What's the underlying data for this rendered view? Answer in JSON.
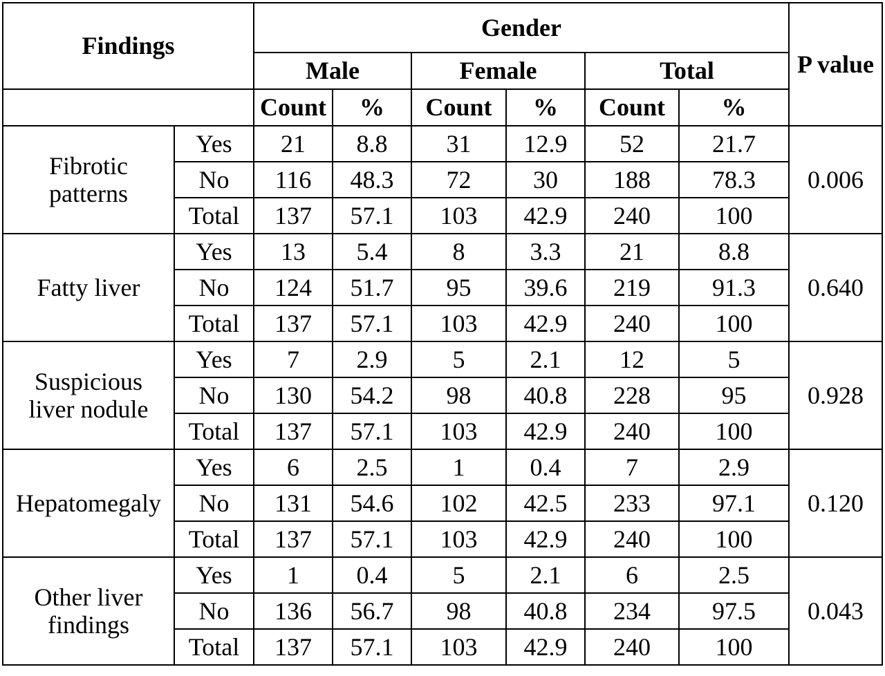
{
  "header": {
    "findings": "Findings",
    "gender": "Gender",
    "p_value": "P value",
    "groups": [
      "Male",
      "Female",
      "Total"
    ],
    "count": "Count",
    "percent": "%"
  },
  "rows": [
    {
      "label": [
        "Fibrotic",
        "patterns"
      ],
      "p": "0.006",
      "sub": [
        {
          "name": "Yes",
          "m_c": "21",
          "m_p": "8.8",
          "f_c": "31",
          "f_p": "12.9",
          "t_c": "52",
          "t_p": "21.7"
        },
        {
          "name": "No",
          "m_c": "116",
          "m_p": "48.3",
          "f_c": "72",
          "f_p": "30",
          "t_c": "188",
          "t_p": "78.3"
        },
        {
          "name": "Total",
          "m_c": "137",
          "m_p": "57.1",
          "f_c": "103",
          "f_p": "42.9",
          "t_c": "240",
          "t_p": "100"
        }
      ]
    },
    {
      "label": [
        "Fatty liver"
      ],
      "p": "0.640",
      "sub": [
        {
          "name": "Yes",
          "m_c": "13",
          "m_p": "5.4",
          "f_c": "8",
          "f_p": "3.3",
          "t_c": "21",
          "t_p": "8.8"
        },
        {
          "name": "No",
          "m_c": "124",
          "m_p": "51.7",
          "f_c": "95",
          "f_p": "39.6",
          "t_c": "219",
          "t_p": "91.3"
        },
        {
          "name": "Total",
          "m_c": "137",
          "m_p": "57.1",
          "f_c": "103",
          "f_p": "42.9",
          "t_c": "240",
          "t_p": "100"
        }
      ]
    },
    {
      "label": [
        "Suspicious",
        "liver nodule"
      ],
      "p": "0.928",
      "sub": [
        {
          "name": "Yes",
          "m_c": "7",
          "m_p": "2.9",
          "f_c": "5",
          "f_p": "2.1",
          "t_c": "12",
          "t_p": "5"
        },
        {
          "name": "No",
          "m_c": "130",
          "m_p": "54.2",
          "f_c": "98",
          "f_p": "40.8",
          "t_c": "228",
          "t_p": "95"
        },
        {
          "name": "Total",
          "m_c": "137",
          "m_p": "57.1",
          "f_c": "103",
          "f_p": "42.9",
          "t_c": "240",
          "t_p": "100"
        }
      ]
    },
    {
      "label": [
        "Hepatomegaly"
      ],
      "p": "0.120",
      "sub": [
        {
          "name": "Yes",
          "m_c": "6",
          "m_p": "2.5",
          "f_c": "1",
          "f_p": "0.4",
          "t_c": "7",
          "t_p": "2.9"
        },
        {
          "name": "No",
          "m_c": "131",
          "m_p": "54.6",
          "f_c": "102",
          "f_p": "42.5",
          "t_c": "233",
          "t_p": "97.1"
        },
        {
          "name": "Total",
          "m_c": "137",
          "m_p": "57.1",
          "f_c": "103",
          "f_p": "42.9",
          "t_c": "240",
          "t_p": "100"
        }
      ]
    },
    {
      "label": [
        "Other liver",
        "findings"
      ],
      "p": "0.043",
      "sub": [
        {
          "name": "Yes",
          "m_c": "1",
          "m_p": "0.4",
          "f_c": "5",
          "f_p": "2.1",
          "t_c": "6",
          "t_p": "2.5"
        },
        {
          "name": "No",
          "m_c": "136",
          "m_p": "56.7",
          "f_c": "98",
          "f_p": "40.8",
          "t_c": "234",
          "t_p": "97.5"
        },
        {
          "name": "Total",
          "m_c": "137",
          "m_p": "57.1",
          "f_c": "103",
          "f_p": "42.9",
          "t_c": "240",
          "t_p": "100"
        }
      ]
    }
  ]
}
